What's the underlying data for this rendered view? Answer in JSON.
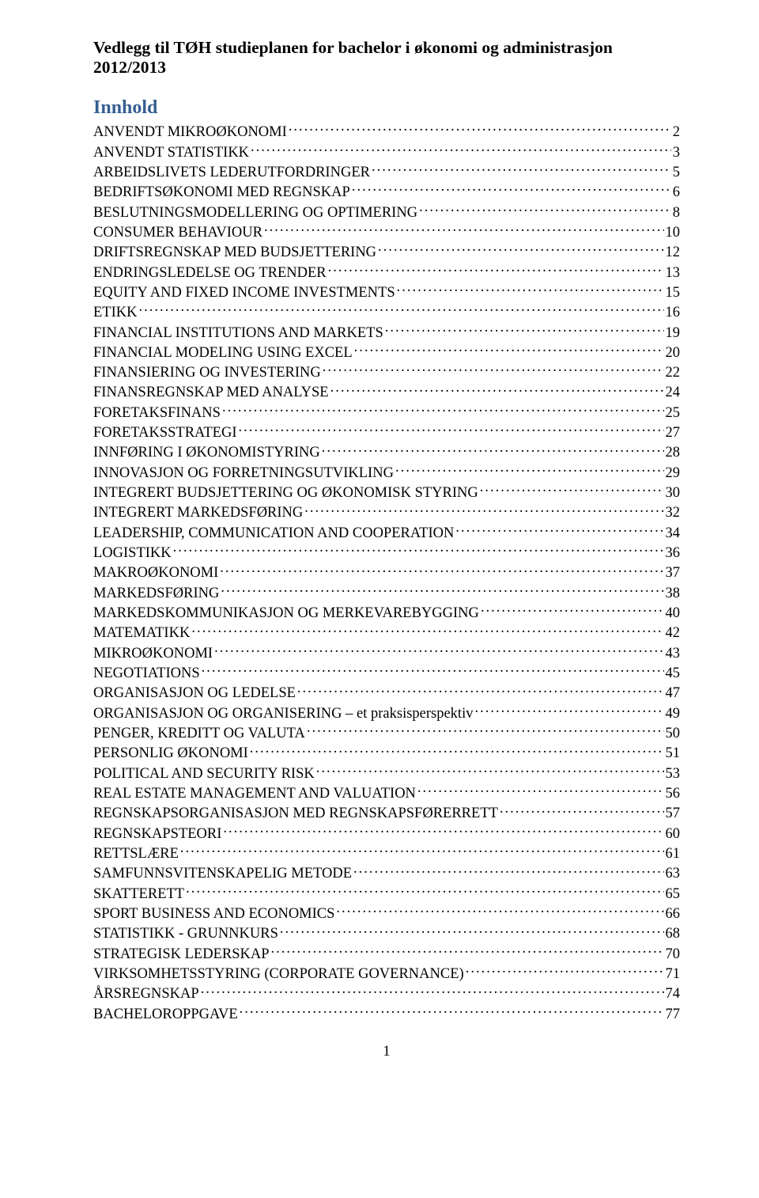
{
  "title_line1": "Vedlegg til TØH studieplanen for bachelor i økonomi og administrasjon",
  "title_line2": "2012/2013",
  "section_heading": "Innhold",
  "page_number": "1",
  "toc": [
    {
      "label": "ANVENDT MIKROØKONOMI",
      "page": "2"
    },
    {
      "label": "ANVENDT STATISTIKK",
      "page": "3"
    },
    {
      "label": "ARBEIDSLIVETS LEDERUTFORDRINGER",
      "page": "5"
    },
    {
      "label": "BEDRIFTSØKONOMI MED REGNSKAP",
      "page": "6"
    },
    {
      "label": "BESLUTNINGSMODELLERING OG OPTIMERING",
      "page": "8"
    },
    {
      "label": "CONSUMER BEHAVIOUR",
      "page": "10"
    },
    {
      "label": "DRIFTSREGNSKAP MED BUDSJETTERING",
      "page": "12"
    },
    {
      "label": "ENDRINGSLEDELSE OG TRENDER",
      "page": "13"
    },
    {
      "label": "EQUITY AND FIXED INCOME INVESTMENTS",
      "page": "15"
    },
    {
      "label": "ETIKK",
      "page": "16"
    },
    {
      "label": "FINANCIAL INSTITUTIONS AND MARKETS",
      "page": "19"
    },
    {
      "label": "FINANCIAL MODELING USING EXCEL",
      "page": "20"
    },
    {
      "label": "FINANSIERING OG INVESTERING",
      "page": "22"
    },
    {
      "label": "FINANSREGNSKAP MED ANALYSE",
      "page": "24"
    },
    {
      "label": "FORETAKSFINANS",
      "page": "25"
    },
    {
      "label": "FORETAKSSTRATEGI",
      "page": "27"
    },
    {
      "label": "INNFØRING I ØKONOMISTYRING",
      "page": "28"
    },
    {
      "label": "INNOVASJON OG FORRETNINGSUTVIKLING",
      "page": "29"
    },
    {
      "label": "INTEGRERT BUDSJETTERING OG ØKONOMISK STYRING",
      "page": "30"
    },
    {
      "label": "INTEGRERT MARKEDSFØRING",
      "page": "32"
    },
    {
      "label": "LEADERSHIP, COMMUNICATION AND COOPERATION",
      "page": "34"
    },
    {
      "label": "LOGISTIKK",
      "page": "36"
    },
    {
      "label": "MAKROØKONOMI",
      "page": "37"
    },
    {
      "label": "MARKEDSFØRING",
      "page": "38"
    },
    {
      "label": "MARKEDSKOMMUNIKASJON OG MERKEVAREBYGGING",
      "page": "40"
    },
    {
      "label": "MATEMATIKK",
      "page": "42"
    },
    {
      "label": "MIKROØKONOMI",
      "page": "43"
    },
    {
      "label": "NEGOTIATIONS",
      "page": "45"
    },
    {
      "label": "ORGANISASJON OG LEDELSE",
      "page": "47"
    },
    {
      "label": "ORGANISASJON OG ORGANISERING – et praksisperspektiv",
      "page": "49"
    },
    {
      "label": "PENGER, KREDITT OG VALUTA",
      "page": "50"
    },
    {
      "label": "PERSONLIG ØKONOMI",
      "page": "51"
    },
    {
      "label": "POLITICAL AND SECURITY RISK",
      "page": "53"
    },
    {
      "label": "REAL ESTATE MANAGEMENT AND VALUATION",
      "page": "56"
    },
    {
      "label": "REGNSKAPSORGANISASJON MED REGNSKAPSFØRERRETT",
      "page": "57"
    },
    {
      "label": "REGNSKAPSTEORI",
      "page": "60"
    },
    {
      "label": "RETTSLÆRE",
      "page": "61"
    },
    {
      "label": "SAMFUNNSVITENSKAPELIG METODE",
      "page": "63"
    },
    {
      "label": "SKATTERETT",
      "page": "65"
    },
    {
      "label": "SPORT BUSINESS AND ECONOMICS",
      "page": "66"
    },
    {
      "label": "STATISTIKK - GRUNNKURS",
      "page": "68"
    },
    {
      "label": "STRATEGISK LEDERSKAP",
      "page": "70"
    },
    {
      "label": "VIRKSOMHETSSTYRING (CORPORATE GOVERNANCE)",
      "page": "71"
    },
    {
      "label": "ÅRSREGNSKAP",
      "page": "74"
    },
    {
      "label": "BACHELOROPPGAVE",
      "page": "77"
    }
  ]
}
